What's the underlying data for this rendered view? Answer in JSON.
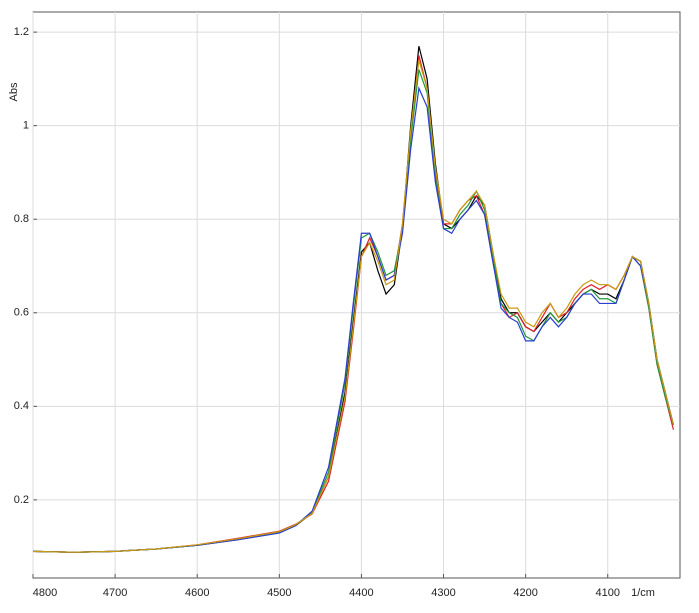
{
  "chart_data": {
    "type": "line",
    "y_label": "Abs",
    "x_label": "1/cm",
    "x": [
      4800,
      4750,
      4700,
      4650,
      4600,
      4550,
      4500,
      4480,
      4460,
      4440,
      4420,
      4410,
      4400,
      4390,
      4380,
      4370,
      4360,
      4350,
      4340,
      4330,
      4320,
      4310,
      4300,
      4290,
      4280,
      4270,
      4260,
      4250,
      4240,
      4230,
      4220,
      4210,
      4200,
      4190,
      4180,
      4170,
      4160,
      4150,
      4140,
      4130,
      4120,
      4110,
      4100,
      4090,
      4080,
      4070,
      4060,
      4050,
      4040,
      4030,
      4020
    ],
    "series": [
      {
        "color": "#000000",
        "values": [
          0.09,
          0.088,
          0.09,
          0.095,
          0.103,
          0.115,
          0.13,
          0.145,
          0.172,
          0.25,
          0.43,
          0.58,
          0.73,
          0.75,
          0.69,
          0.64,
          0.66,
          0.78,
          1.0,
          1.17,
          1.1,
          0.92,
          0.79,
          0.78,
          0.8,
          0.82,
          0.85,
          0.83,
          0.73,
          0.63,
          0.6,
          0.6,
          0.57,
          0.56,
          0.58,
          0.6,
          0.58,
          0.6,
          0.62,
          0.64,
          0.65,
          0.64,
          0.64,
          0.63,
          0.67,
          0.72,
          0.71,
          0.62,
          0.5,
          0.43,
          0.36
        ]
      },
      {
        "color": "#e0202a",
        "values": [
          0.09,
          0.088,
          0.09,
          0.095,
          0.104,
          0.118,
          0.133,
          0.148,
          0.17,
          0.24,
          0.41,
          0.56,
          0.72,
          0.76,
          0.72,
          0.67,
          0.68,
          0.79,
          0.98,
          1.15,
          1.08,
          0.9,
          0.79,
          0.79,
          0.82,
          0.84,
          0.85,
          0.81,
          0.71,
          0.62,
          0.59,
          0.6,
          0.57,
          0.56,
          0.59,
          0.62,
          0.59,
          0.6,
          0.63,
          0.65,
          0.66,
          0.65,
          0.66,
          0.65,
          0.68,
          0.72,
          0.7,
          0.61,
          0.49,
          0.42,
          0.35
        ]
      },
      {
        "color": "#1f9a3a",
        "values": [
          0.09,
          0.088,
          0.09,
          0.095,
          0.103,
          0.116,
          0.131,
          0.146,
          0.174,
          0.26,
          0.45,
          0.61,
          0.76,
          0.77,
          0.73,
          0.68,
          0.69,
          0.78,
          0.97,
          1.12,
          1.07,
          0.89,
          0.78,
          0.78,
          0.81,
          0.83,
          0.86,
          0.82,
          0.72,
          0.62,
          0.6,
          0.59,
          0.55,
          0.54,
          0.57,
          0.6,
          0.58,
          0.59,
          0.62,
          0.64,
          0.65,
          0.63,
          0.63,
          0.62,
          0.67,
          0.72,
          0.7,
          0.61,
          0.49,
          0.42,
          0.36
        ]
      },
      {
        "color": "#2a3fd0",
        "values": [
          0.09,
          0.088,
          0.09,
          0.095,
          0.103,
          0.115,
          0.129,
          0.145,
          0.176,
          0.27,
          0.46,
          0.62,
          0.77,
          0.77,
          0.72,
          0.67,
          0.68,
          0.77,
          0.95,
          1.08,
          1.04,
          0.88,
          0.78,
          0.77,
          0.8,
          0.82,
          0.84,
          0.81,
          0.71,
          0.61,
          0.59,
          0.58,
          0.54,
          0.54,
          0.57,
          0.59,
          0.57,
          0.59,
          0.62,
          0.64,
          0.64,
          0.62,
          0.62,
          0.62,
          0.67,
          0.72,
          0.7,
          0.62,
          0.5,
          0.43,
          0.36
        ]
      },
      {
        "color": "#c89a10",
        "values": [
          0.09,
          0.088,
          0.09,
          0.095,
          0.104,
          0.117,
          0.132,
          0.147,
          0.171,
          0.25,
          0.42,
          0.57,
          0.72,
          0.75,
          0.71,
          0.66,
          0.67,
          0.79,
          0.99,
          1.14,
          1.08,
          0.91,
          0.8,
          0.79,
          0.82,
          0.84,
          0.86,
          0.83,
          0.73,
          0.64,
          0.61,
          0.61,
          0.58,
          0.57,
          0.6,
          0.62,
          0.59,
          0.61,
          0.64,
          0.66,
          0.67,
          0.66,
          0.66,
          0.65,
          0.68,
          0.72,
          0.71,
          0.62,
          0.5,
          0.43,
          0.36
        ]
      }
    ],
    "xlim": [
      4800,
      4012
    ],
    "xticks": [
      4800,
      4700,
      4600,
      4500,
      4400,
      4300,
      4200,
      4100
    ],
    "ylim": [
      0.033,
      1.243
    ],
    "yticks": [
      0.2,
      0.4,
      0.6,
      0.8,
      1,
      1.2
    ],
    "grid": true
  }
}
